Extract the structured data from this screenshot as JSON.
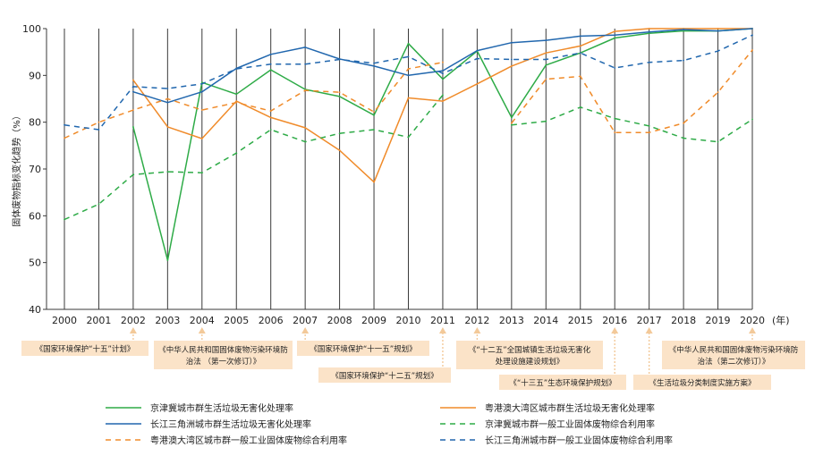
{
  "chart_data": {
    "type": "line",
    "ylabel": "固体废物指标变化趋势（%）",
    "x_unit": "(年)",
    "ylim": [
      40,
      100
    ],
    "yticks": [
      40,
      50,
      60,
      70,
      80,
      90,
      100
    ],
    "grid": "vertical lines at each year",
    "legend_position": "bottom",
    "x": [
      "2000",
      "2001",
      "2002",
      "2003",
      "2004",
      "2005",
      "2006",
      "2007",
      "2008",
      "2009",
      "2010",
      "2011",
      "2012",
      "2013",
      "2014",
      "2015",
      "2016",
      "2017",
      "2018",
      "2019",
      "2020"
    ],
    "series": [
      {
        "name": "京津冀城市群生活垃圾无害化处理率",
        "color": "#2eab47",
        "dash": "solid",
        "values": [
          null,
          null,
          79,
          50.5,
          88.5,
          86,
          91.2,
          87,
          85.5,
          81.5,
          96.8,
          89.2,
          95.2,
          81,
          92.2,
          94.8,
          98,
          99,
          99.5,
          99.5,
          100
        ]
      },
      {
        "name": "粤港澳大湾区城市群生活垃圾无害化处理率",
        "color": "#f08b2a",
        "dash": "solid",
        "values": [
          null,
          null,
          89,
          79,
          76.5,
          84.5,
          81,
          78.8,
          74,
          67.2,
          85.2,
          84.5,
          88.2,
          92,
          94.8,
          96.3,
          99.4,
          100,
          100,
          100,
          100
        ]
      },
      {
        "name": "长江三角洲城市群生活垃圾无害化处理率",
        "color": "#2167ae",
        "dash": "solid",
        "values": [
          null,
          null,
          86.5,
          84.2,
          86.5,
          91.5,
          94.5,
          96,
          93.5,
          92,
          90,
          91,
          95.3,
          97,
          97.5,
          98.4,
          98.6,
          99.3,
          99.8,
          99.5,
          100
        ]
      },
      {
        "name": "京津冀城市群一般工业固体废物综合利用率",
        "color": "#2eab47",
        "dash": "dashed",
        "values": [
          59.2,
          62.5,
          68.8,
          69.4,
          69.2,
          73.4,
          78.4,
          75.8,
          77.6,
          78.4,
          76.8,
          85.8,
          null,
          79.4,
          80.2,
          83.2,
          80.8,
          79.2,
          76.6,
          75.8,
          80.6
        ]
      },
      {
        "name": "粤港澳大湾区城市群一般工业固体废物综合利用率",
        "color": "#f08b2a",
        "dash": "dashed",
        "values": [
          76.6,
          80,
          82.6,
          85,
          82.6,
          84.2,
          82.4,
          86.8,
          86.4,
          82.2,
          91.4,
          92.8,
          null,
          79.8,
          89.2,
          89.8,
          77.8,
          77.8,
          79.8,
          86.4,
          95.4
        ]
      },
      {
        "name": "长江三角洲城市群一般工业固体废物综合利用率",
        "color": "#2167ae",
        "dash": "dashed",
        "values": [
          79.4,
          78.4,
          87.6,
          87.2,
          88.2,
          91.4,
          92.4,
          92.4,
          93.4,
          92.6,
          94,
          90.4,
          93.6,
          93.4,
          93.4,
          94.8,
          91.6,
          92.8,
          93.2,
          95.2,
          98.6
        ]
      }
    ],
    "annotations": [
      {
        "year": "2002",
        "text": "《国家环境保护“十五”计划》"
      },
      {
        "year": "2004",
        "text": "《中华人民共和国固体废物污染环境防治法 （第一次修订）》"
      },
      {
        "year": "2007",
        "text": "《国家环境保护“十一五”规划》"
      },
      {
        "year": "2011",
        "text": "《国家环境保护“十二五”规划》"
      },
      {
        "year": "2012",
        "text": "《“十二五”全国城镇生活垃圾无害化处理设施建设规划》"
      },
      {
        "year": "2016",
        "text": "《“十三五”生态环境保护规划》"
      },
      {
        "year": "2017",
        "text": "《生活垃圾分类制度实施方案》"
      },
      {
        "year": "2020",
        "text": "《中华人民共和国固体废物污染环境防治法（第二次修订）》"
      }
    ]
  }
}
